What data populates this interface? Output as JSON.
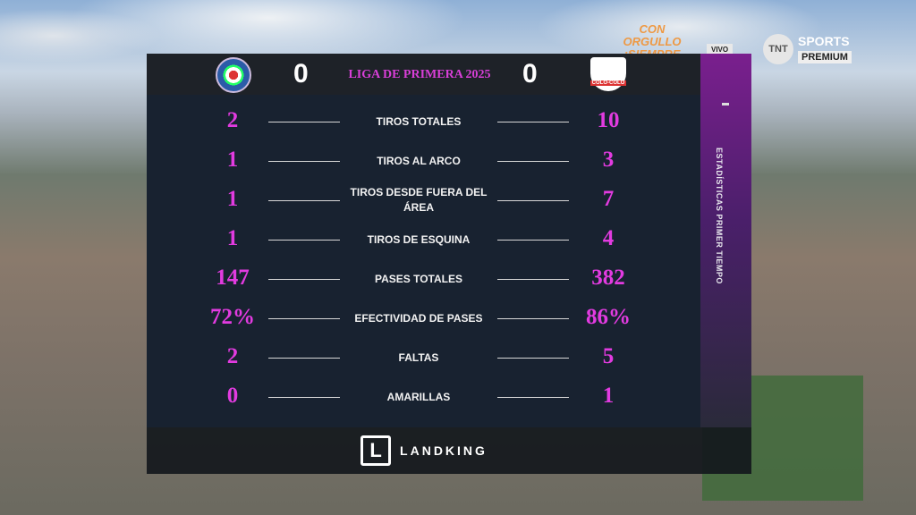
{
  "broadcast": {
    "promo": "CON ORGULLO ¡SIEMPRE",
    "live_badge": "VIVO",
    "network": "TNT",
    "network_line1": "SPORTS",
    "network_line2": "PREMIUM"
  },
  "header": {
    "home_score": "0",
    "away_score": "0",
    "competition": "LIGA DE PRIMERA 2025",
    "away_crest_text": "COLO-COLO"
  },
  "side_title": "ESTADÍSTICAS PRIMER TIEMPO",
  "stats": [
    {
      "label": "TIROS TOTALES",
      "home": "2",
      "away": "10"
    },
    {
      "label": "TIROS AL ARCO",
      "home": "1",
      "away": "3"
    },
    {
      "label": "TIROS DESDE FUERA DEL ÁREA",
      "home": "1",
      "away": "7"
    },
    {
      "label": "TIROS DE ESQUINA",
      "home": "1",
      "away": "4"
    },
    {
      "label": "PASES TOTALES",
      "home": "147",
      "away": "382"
    },
    {
      "label": "EFECTIVIDAD DE PASES",
      "home": "72%",
      "away": "86%"
    },
    {
      "label": "FALTAS",
      "home": "2",
      "away": "5"
    },
    {
      "label": "AMARILLAS",
      "home": "0",
      "away": "1"
    }
  ],
  "sponsor": {
    "logo_letter": "L",
    "name": "LANDKING"
  },
  "colors": {
    "accent": "#e23be0",
    "panel": "#182230",
    "side": "#7a1f8e"
  }
}
